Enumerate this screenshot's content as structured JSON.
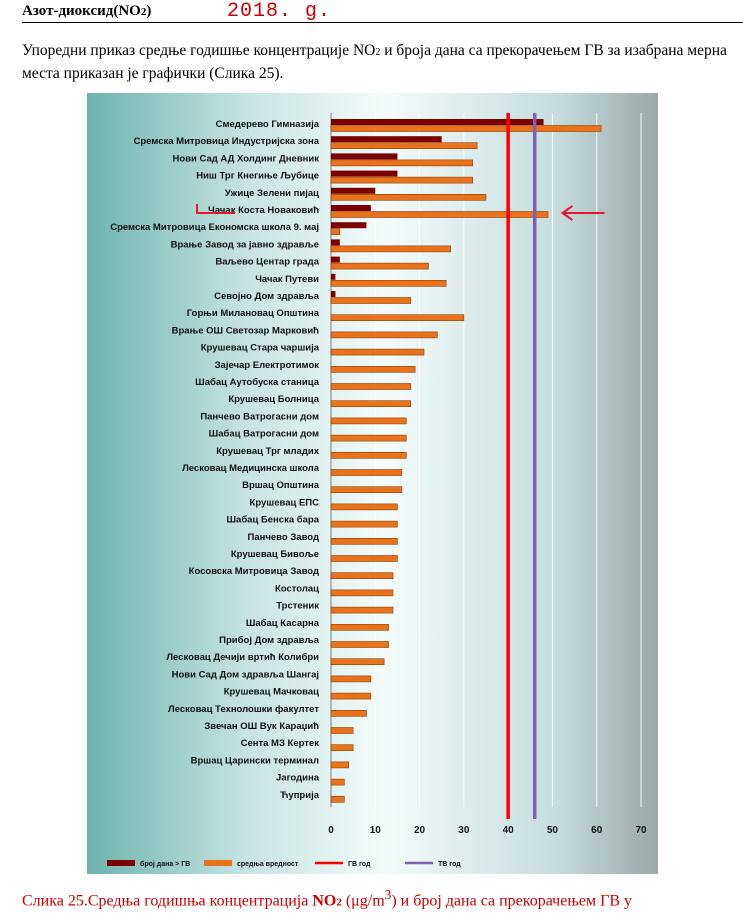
{
  "heading": {
    "main": "Азот-диоксид(NO",
    "sub": "2",
    "close": ")",
    "year": "2018. g."
  },
  "intro": {
    "part1": "Упоредни приказ средње годишње концентрације NO",
    "sub": "2",
    "part2": " и броја дана са прекорачењем ГВ за изабрана мерна места приказан је графички (Слика 25)."
  },
  "caption": {
    "part1": "Слика 25.Средња годишња концентрација ",
    "bold": "NO",
    "sub": "2",
    "part2": " (μg/m",
    "sup": "3",
    "part3": ") и број дана са прекорачењем ГВ у"
  },
  "colors": {
    "days": "#7b0000",
    "mean": "#e9731c",
    "gv": "#ff0000",
    "tv": "#7f5fb0",
    "annotation": "#e8172f"
  },
  "chart_data": {
    "type": "bar",
    "orientation": "horizontal",
    "categories": [
      "Смедерево Гимназија",
      "Сремска Митровица Индустријска зона",
      "Нови Сад АД Холдинг Дневник",
      "Ниш Трг Кнегиње Љубице",
      "Ужице Зелени пијац",
      "Чачак Коста Новаковић",
      "Сремска Митровица Економска школа 9. мај",
      "Врање Завод за јавно здравље",
      "Ваљево Центар града",
      "Чачак Путеви",
      "Севојно Дом здравља",
      "Горњи Милановац Општина",
      "Врање ОШ Светозар Марковић",
      "Крушевац Стара чаршија",
      "Зајечар Електротимок",
      "Шабац Аутобуска станица",
      "Крушевац Болница",
      "Панчево Ватрогасни дом",
      "Шабац Ватрогасни дом",
      "Крушевац Трг младих",
      "Лесковац Медицинска школа",
      "Вршац Општина",
      "Крушевац ЕПС",
      "Шабац Бенска бара",
      "Панчево Завод",
      "Крушевац Бивоље",
      "Косовска Митровица Завод",
      "Костолац",
      "Трстеник",
      "Шабац Касарна",
      "Прибој Дом здравља",
      "Лесковац Дечији вртић Колибри",
      "Нови Сад Дом здравља Шангај",
      "Крушевац Мачковац",
      "Лесковац Технолошки факултет",
      "Звечан ОШ Вук Караџић",
      "Сента МЗ Кертек",
      "Вршац Царински терминал",
      "Јагодина",
      "Ћуприја"
    ],
    "series": [
      {
        "name": "број дана > ГВ",
        "values": [
          48,
          25,
          15,
          15,
          10,
          9,
          8,
          2,
          2,
          1,
          1,
          0,
          0,
          0,
          0,
          0,
          0,
          0,
          0,
          0,
          0,
          0,
          0,
          0,
          0,
          0,
          0,
          0,
          0,
          0,
          0,
          0,
          0,
          0,
          0,
          0,
          0,
          0,
          0,
          0
        ]
      },
      {
        "name": "средња вредност",
        "values": [
          61,
          33,
          32,
          32,
          35,
          49,
          2,
          27,
          22,
          26,
          18,
          30,
          24,
          21,
          19,
          18,
          18,
          17,
          17,
          17,
          16,
          16,
          15,
          15,
          15,
          15,
          14,
          14,
          14,
          13,
          13,
          12,
          9,
          9,
          8,
          5,
          5,
          4,
          3,
          3
        ]
      }
    ],
    "reference_lines": [
      {
        "name": "ГВ год",
        "value": 40
      },
      {
        "name": "ТВ год",
        "value": 46
      }
    ],
    "x_ticks": [
      0,
      10,
      20,
      30,
      40,
      50,
      60,
      70
    ],
    "xlim": [
      0,
      70
    ],
    "legend_position": "bottom",
    "highlighted_category": "Чачак Коста Новаковић"
  }
}
